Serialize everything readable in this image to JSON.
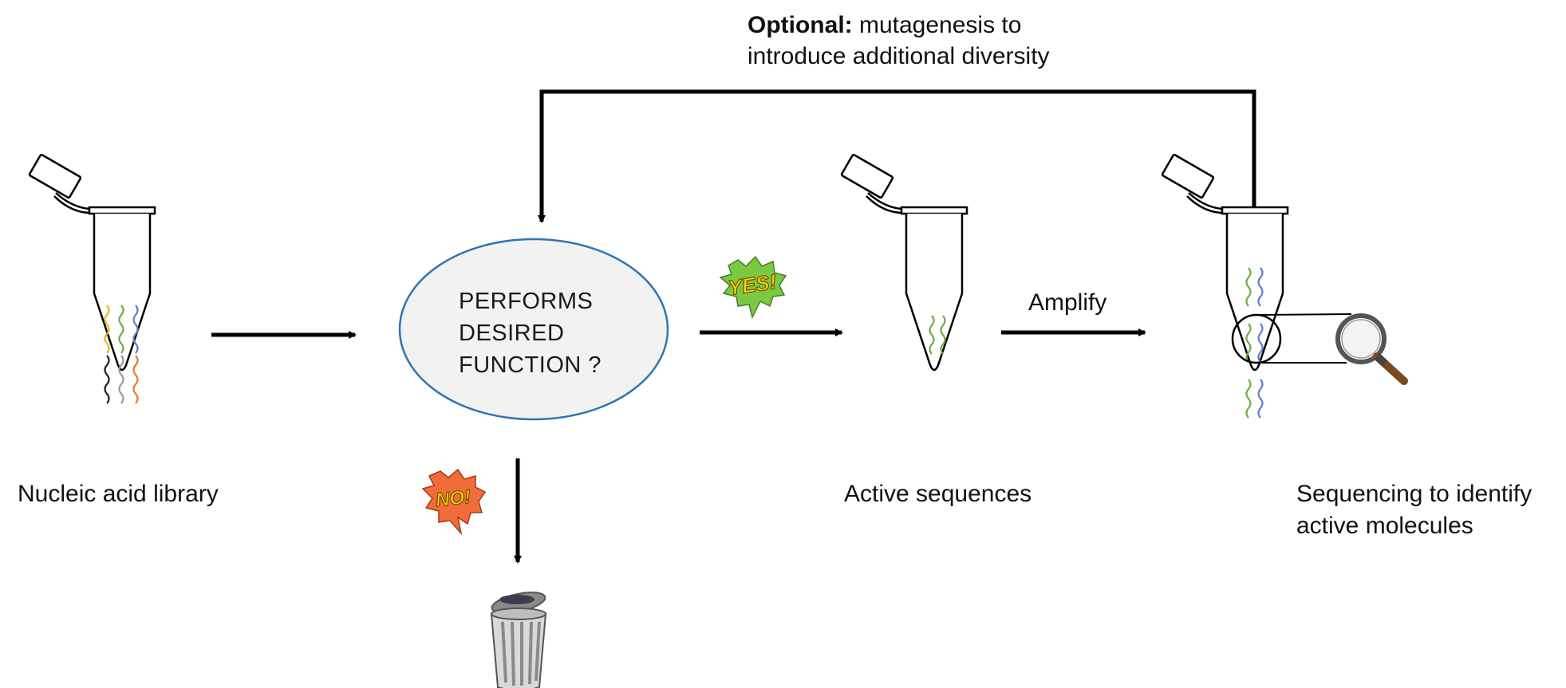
{
  "optional_note": {
    "bold": "Optional:",
    "line1_rest": " mutagenesis to",
    "line2": "introduce additional diversity"
  },
  "decision": {
    "line1": "PERFORMS",
    "line2": "DESIRED",
    "line3": "FUNCTION ?"
  },
  "labels": {
    "library": "Nucleic acid library",
    "active": "Active sequences",
    "sequencing_line1": "Sequencing to identify",
    "sequencing_line2": "active molecules",
    "amplify": "Amplify"
  },
  "bursts": {
    "yes": "YES!",
    "no": "NO!"
  },
  "colors": {
    "oval_fill": "#f2f2f2",
    "oval_stroke": "#2e75b6",
    "arrow": "#000000",
    "strand_yellow": "#e6b82e",
    "strand_green": "#70ad47",
    "strand_blue": "#5b7fd1",
    "strand_black": "#222222",
    "strand_gray": "#9a9a9a",
    "strand_orange": "#e07b39",
    "yes_burst": "#7ac943",
    "no_burst": "#f26b3a",
    "burst_text": "#f5d90a"
  }
}
